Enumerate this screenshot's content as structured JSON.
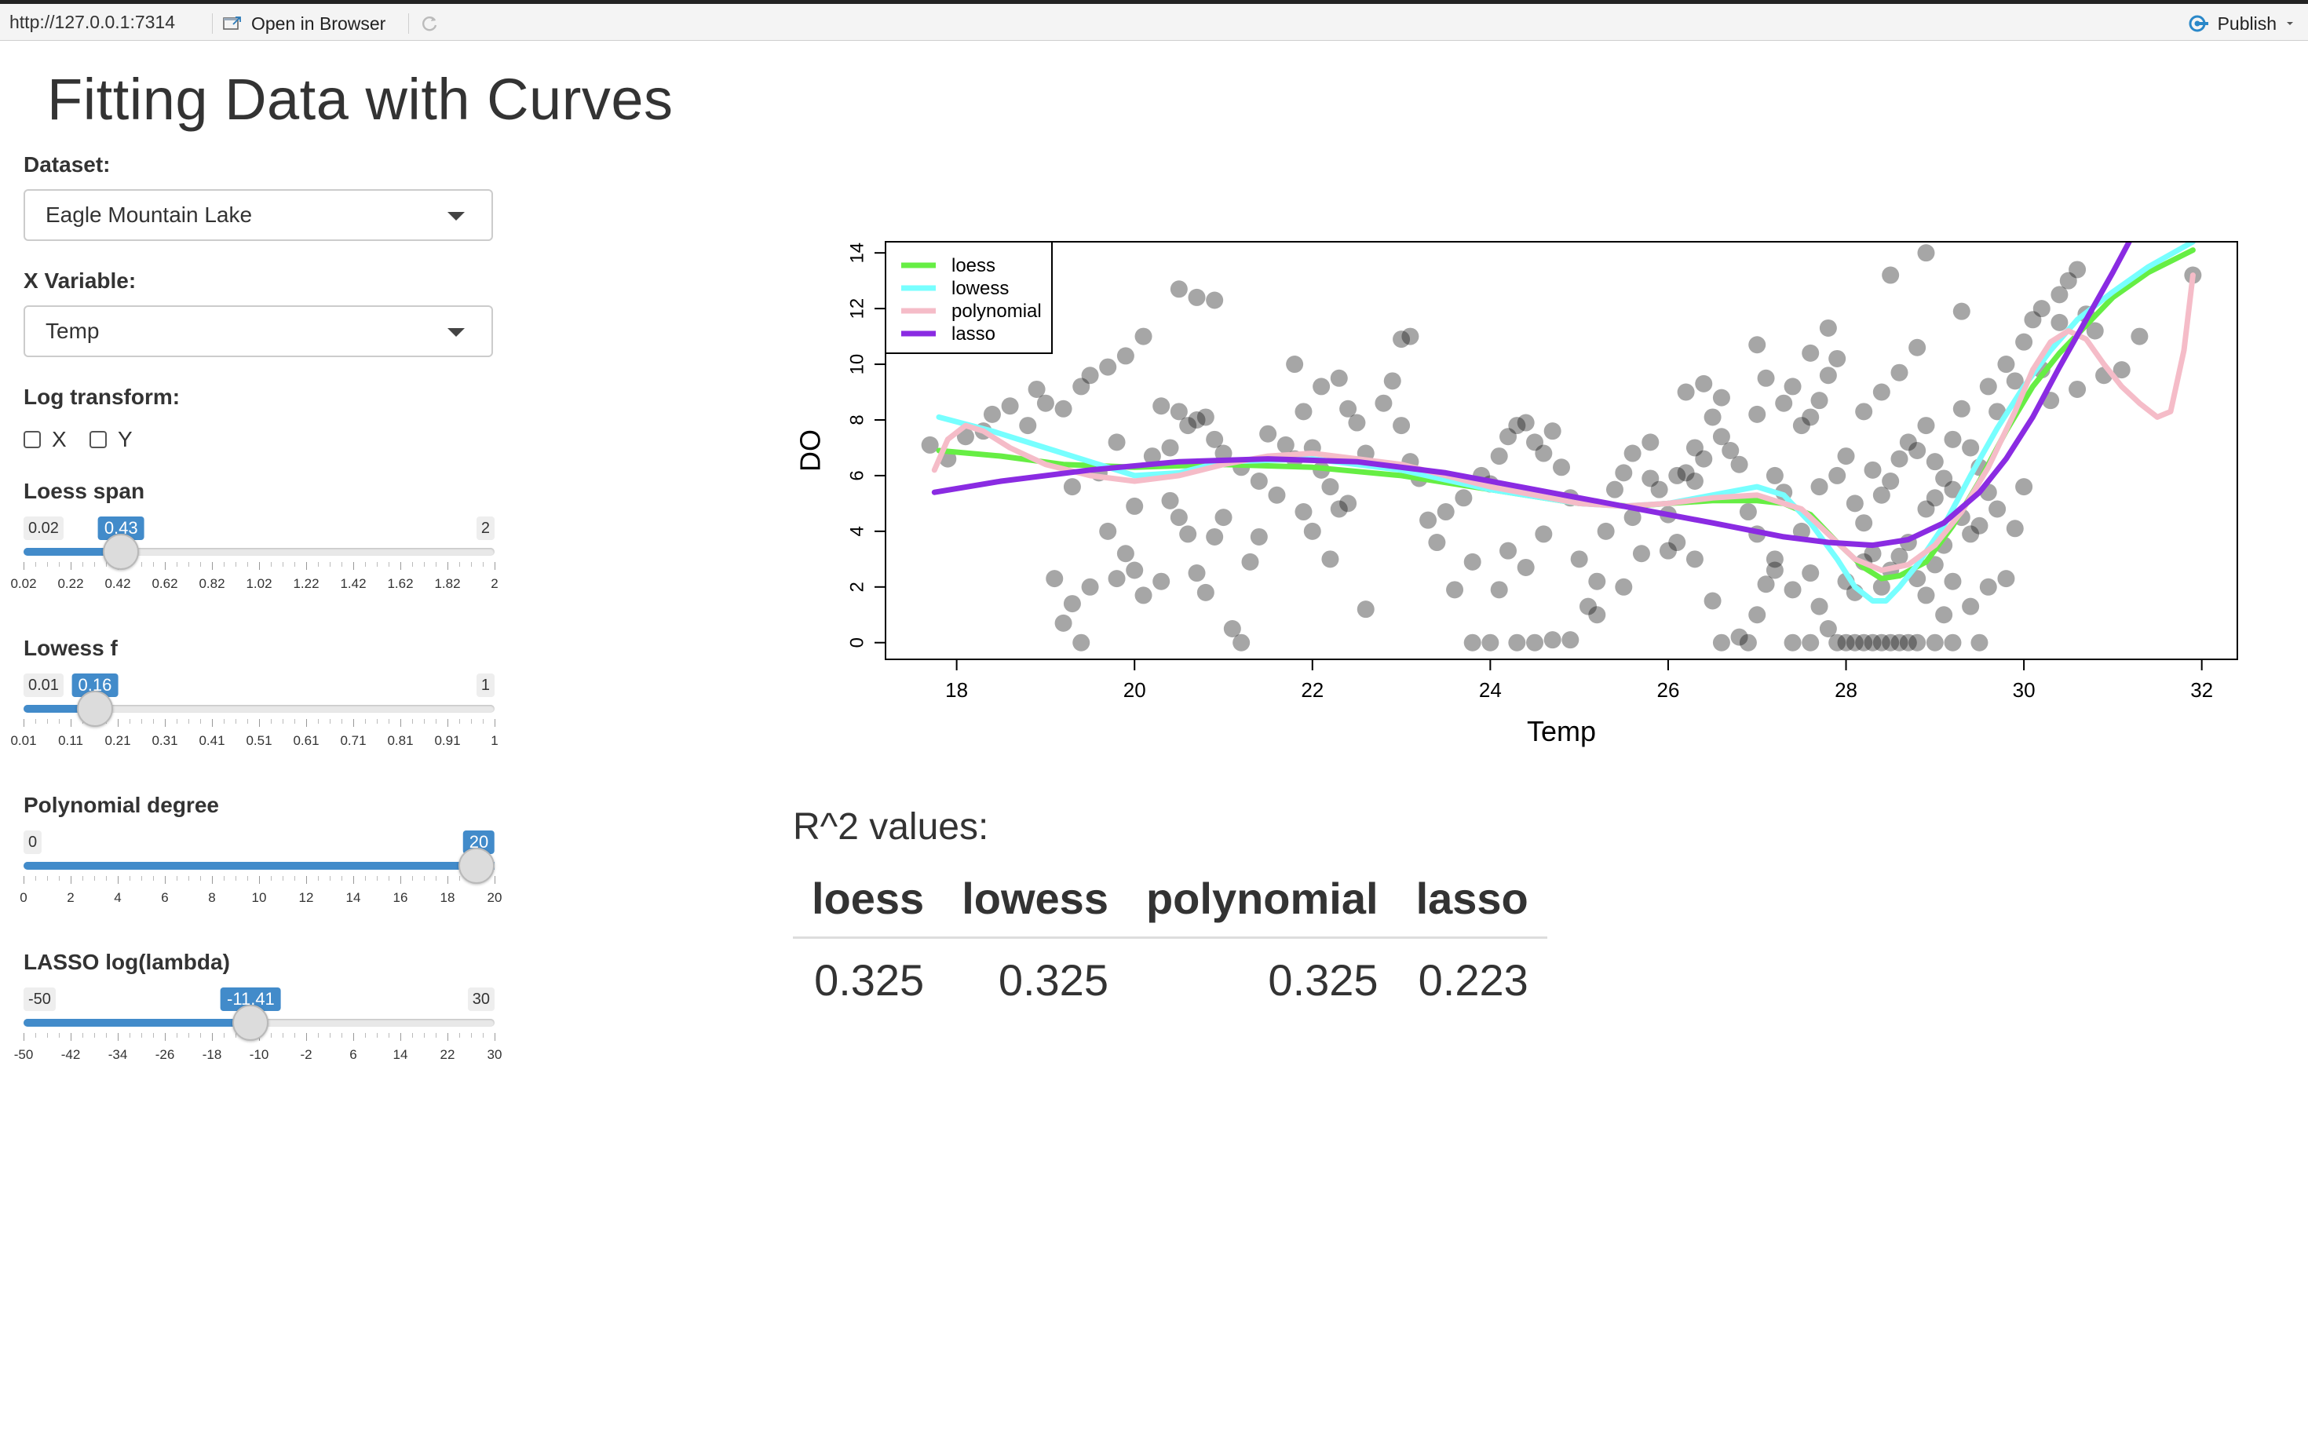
{
  "window": {
    "url": "http://127.0.0.1:7314",
    "open_in_browser": "Open in Browser",
    "publish": "Publish"
  },
  "page": {
    "title": "Fitting Data with Curves"
  },
  "controls": {
    "dataset": {
      "label": "Dataset:",
      "value": "Eagle Mountain Lake"
    },
    "xvar": {
      "label": "X Variable:",
      "value": "Temp"
    },
    "logtransform": {
      "label": "Log transform:",
      "x": "X",
      "y": "Y",
      "x_checked": false,
      "y_checked": false
    },
    "sliders": [
      {
        "label": "Loess span",
        "min": 0.02,
        "max": 2,
        "value": 0.43,
        "min_label": "0.02",
        "max_label": "2",
        "value_label": "0.43",
        "ticks": [
          "0.02",
          "0.22",
          "0.42",
          "0.62",
          "0.82",
          "1.02",
          "1.22",
          "1.42",
          "1.62",
          "1.82",
          "2"
        ]
      },
      {
        "label": "Lowess f",
        "min": 0.01,
        "max": 1,
        "value": 0.16,
        "min_label": "0.01",
        "max_label": "1",
        "value_label": "0.16",
        "ticks": [
          "0.01",
          "0.11",
          "0.21",
          "0.31",
          "0.41",
          "0.51",
          "0.61",
          "0.71",
          "0.81",
          "0.91",
          "1"
        ]
      },
      {
        "label": "Polynomial degree",
        "min": 0,
        "max": 20,
        "value": 20,
        "min_label": "0",
        "max_label": "",
        "value_label": "20",
        "ticks": [
          "0",
          "2",
          "4",
          "6",
          "8",
          "10",
          "12",
          "14",
          "16",
          "18",
          "20"
        ]
      },
      {
        "label": "LASSO log(lambda)",
        "min": -50,
        "max": 30,
        "value": -11.41,
        "min_label": "-50",
        "max_label": "30",
        "value_label": "-11.41",
        "ticks": [
          "-50",
          "-42",
          "-34",
          "-26",
          "-18",
          "-10",
          "-2",
          "6",
          "14",
          "22",
          "30"
        ]
      }
    ]
  },
  "results": {
    "title": "R^2 values:",
    "columns": [
      "loess",
      "lowess",
      "polynomial",
      "lasso"
    ],
    "values": [
      "0.325",
      "0.325",
      "0.325",
      "0.223"
    ]
  },
  "chart_data": {
    "type": "scatter",
    "xlabel": "Temp",
    "ylabel": "DO",
    "xlim": [
      17.2,
      32.4
    ],
    "ylim": [
      -0.6,
      14.4
    ],
    "xticks": [
      18,
      20,
      22,
      24,
      26,
      28,
      30,
      32
    ],
    "yticks": [
      0,
      2,
      4,
      6,
      8,
      10,
      12,
      14
    ],
    "legend_position": "top-left",
    "point_color": "rgba(0,0,0,0.35)",
    "points": [
      [
        17.7,
        7.1
      ],
      [
        17.9,
        6.6
      ],
      [
        18.1,
        7.4
      ],
      [
        18.3,
        7.6
      ],
      [
        18.4,
        8.2
      ],
      [
        18.6,
        8.5
      ],
      [
        18.8,
        7.8
      ],
      [
        19.0,
        8.6
      ],
      [
        19.2,
        8.4
      ],
      [
        19.4,
        9.2
      ],
      [
        19.5,
        9.6
      ],
      [
        19.7,
        9.9
      ],
      [
        19.9,
        10.3
      ],
      [
        18.9,
        9.1
      ],
      [
        19.3,
        5.6
      ],
      [
        19.6,
        6.1
      ],
      [
        19.8,
        7.2
      ],
      [
        19.1,
        2.3
      ],
      [
        19.3,
        1.4
      ],
      [
        19.5,
        2.0
      ],
      [
        19.2,
        0.7
      ],
      [
        19.4,
        0.0
      ],
      [
        19.8,
        2.3
      ],
      [
        20.0,
        2.6
      ],
      [
        20.1,
        1.7
      ],
      [
        20.3,
        2.2
      ],
      [
        20.5,
        4.5
      ],
      [
        20.6,
        3.9
      ],
      [
        20.4,
        5.1
      ],
      [
        20.2,
        6.7
      ],
      [
        20.4,
        7.0
      ],
      [
        20.6,
        7.8
      ],
      [
        20.8,
        8.1
      ],
      [
        20.5,
        8.3
      ],
      [
        20.3,
        8.5
      ],
      [
        20.7,
        8.0
      ],
      [
        20.9,
        7.3
      ],
      [
        21.0,
        6.8
      ],
      [
        21.2,
        6.3
      ],
      [
        21.4,
        5.8
      ],
      [
        21.0,
        4.5
      ],
      [
        20.9,
        3.8
      ],
      [
        20.7,
        2.5
      ],
      [
        20.8,
        1.8
      ],
      [
        21.1,
        0.5
      ],
      [
        21.2,
        0.0
      ],
      [
        20.5,
        12.7
      ],
      [
        20.7,
        12.4
      ],
      [
        20.9,
        12.3
      ],
      [
        20.1,
        11.0
      ],
      [
        21.3,
        2.9
      ],
      [
        21.4,
        3.8
      ],
      [
        21.5,
        7.5
      ],
      [
        21.7,
        7.1
      ],
      [
        21.8,
        6.6
      ],
      [
        21.9,
        8.3
      ],
      [
        22.0,
        7.0
      ],
      [
        22.1,
        6.2
      ],
      [
        22.2,
        5.6
      ],
      [
        22.3,
        4.8
      ],
      [
        21.8,
        10.0
      ],
      [
        22.1,
        9.2
      ],
      [
        22.3,
        9.5
      ],
      [
        22.4,
        8.4
      ],
      [
        22.5,
        7.9
      ],
      [
        22.6,
        6.8
      ],
      [
        22.2,
        3.0
      ],
      [
        22.4,
        5.0
      ],
      [
        22.6,
        1.2
      ],
      [
        22.8,
        8.6
      ],
      [
        23.0,
        7.8
      ],
      [
        23.1,
        6.5
      ],
      [
        23.2,
        5.9
      ],
      [
        23.3,
        4.4
      ],
      [
        23.0,
        10.9
      ],
      [
        23.1,
        11.0
      ],
      [
        22.9,
        9.4
      ],
      [
        23.4,
        3.6
      ],
      [
        23.5,
        4.7
      ],
      [
        23.7,
        5.2
      ],
      [
        23.9,
        6.0
      ],
      [
        24.0,
        5.7
      ],
      [
        24.1,
        6.7
      ],
      [
        24.2,
        7.4
      ],
      [
        24.3,
        7.8
      ],
      [
        24.4,
        7.9
      ],
      [
        24.5,
        7.2
      ],
      [
        24.6,
        6.8
      ],
      [
        24.7,
        7.6
      ],
      [
        24.8,
        6.3
      ],
      [
        24.9,
        5.2
      ],
      [
        24.6,
        3.9
      ],
      [
        24.4,
        2.7
      ],
      [
        24.2,
        3.3
      ],
      [
        24.1,
        1.9
      ],
      [
        23.8,
        0.0
      ],
      [
        24.0,
        0.0
      ],
      [
        24.3,
        0.0
      ],
      [
        24.5,
        0.0
      ],
      [
        24.7,
        0.1
      ],
      [
        24.9,
        0.1
      ],
      [
        25.1,
        1.3
      ],
      [
        25.2,
        2.2
      ],
      [
        25.0,
        3.0
      ],
      [
        25.3,
        4.0
      ],
      [
        25.4,
        5.5
      ],
      [
        25.5,
        6.1
      ],
      [
        25.6,
        6.8
      ],
      [
        25.8,
        7.2
      ],
      [
        25.9,
        5.5
      ],
      [
        26.0,
        4.6
      ],
      [
        26.1,
        3.6
      ],
      [
        26.1,
        6.0
      ],
      [
        26.2,
        6.1
      ],
      [
        26.3,
        5.8
      ],
      [
        26.3,
        7.0
      ],
      [
        26.4,
        6.6
      ],
      [
        26.5,
        8.1
      ],
      [
        26.6,
        7.4
      ],
      [
        26.7,
        6.9
      ],
      [
        26.8,
        6.4
      ],
      [
        26.4,
        9.3
      ],
      [
        26.6,
        8.8
      ],
      [
        26.2,
        9.0
      ],
      [
        26.0,
        3.3
      ],
      [
        26.3,
        3.0
      ],
      [
        26.5,
        1.5
      ],
      [
        26.6,
        0.0
      ],
      [
        26.8,
        0.2
      ],
      [
        26.9,
        0.0
      ],
      [
        27.0,
        1.0
      ],
      [
        27.1,
        2.1
      ],
      [
        27.2,
        3.0
      ],
      [
        27.2,
        6.0
      ],
      [
        27.3,
        5.4
      ],
      [
        27.0,
        8.2
      ],
      [
        27.1,
        9.5
      ],
      [
        27.3,
        8.6
      ],
      [
        27.4,
        9.2
      ],
      [
        27.5,
        7.8
      ],
      [
        27.6,
        8.1
      ],
      [
        27.7,
        8.7
      ],
      [
        27.8,
        9.6
      ],
      [
        27.9,
        10.2
      ],
      [
        27.0,
        10.7
      ],
      [
        27.6,
        10.4
      ],
      [
        27.8,
        11.3
      ],
      [
        27.5,
        4.0
      ],
      [
        27.6,
        2.5
      ],
      [
        27.7,
        1.3
      ],
      [
        27.8,
        0.5
      ],
      [
        27.9,
        0.0
      ],
      [
        28.0,
        0.0
      ],
      [
        28.1,
        0.0
      ],
      [
        28.2,
        0.0
      ],
      [
        28.3,
        0.0
      ],
      [
        28.4,
        0.0
      ],
      [
        28.5,
        0.0
      ],
      [
        28.6,
        0.0
      ],
      [
        28.7,
        0.0
      ],
      [
        28.8,
        0.0
      ],
      [
        27.4,
        0.0
      ],
      [
        27.6,
        0.0
      ],
      [
        28.0,
        2.2
      ],
      [
        28.1,
        1.8
      ],
      [
        28.2,
        2.9
      ],
      [
        28.3,
        3.2
      ],
      [
        28.4,
        2.0
      ],
      [
        28.5,
        2.6
      ],
      [
        28.6,
        3.1
      ],
      [
        28.7,
        3.6
      ],
      [
        28.8,
        2.3
      ],
      [
        28.9,
        1.7
      ],
      [
        29.0,
        2.8
      ],
      [
        29.1,
        3.5
      ],
      [
        29.2,
        2.2
      ],
      [
        29.3,
        4.5
      ],
      [
        28.1,
        5.0
      ],
      [
        28.2,
        4.3
      ],
      [
        28.4,
        5.3
      ],
      [
        28.5,
        5.8
      ],
      [
        28.6,
        6.6
      ],
      [
        28.7,
        7.2
      ],
      [
        28.8,
        6.9
      ],
      [
        28.9,
        7.8
      ],
      [
        29.0,
        6.5
      ],
      [
        29.1,
        5.9
      ],
      [
        29.2,
        7.3
      ],
      [
        29.3,
        8.4
      ],
      [
        29.4,
        7.0
      ],
      [
        29.5,
        6.3
      ],
      [
        29.6,
        5.4
      ],
      [
        29.7,
        4.8
      ],
      [
        28.2,
        8.3
      ],
      [
        28.4,
        9.0
      ],
      [
        28.6,
        9.7
      ],
      [
        28.8,
        10.6
      ],
      [
        28.5,
        13.2
      ],
      [
        28.9,
        14.0
      ],
      [
        29.3,
        11.9
      ],
      [
        29.6,
        9.2
      ],
      [
        29.7,
        8.3
      ],
      [
        29.8,
        10.0
      ],
      [
        29.9,
        9.4
      ],
      [
        30.0,
        10.8
      ],
      [
        30.1,
        11.6
      ],
      [
        30.2,
        9.8
      ],
      [
        30.3,
        8.7
      ],
      [
        30.4,
        12.5
      ],
      [
        30.5,
        13.0
      ],
      [
        30.6,
        13.4
      ],
      [
        30.7,
        11.8
      ],
      [
        30.8,
        11.2
      ],
      [
        30.0,
        5.6
      ],
      [
        29.9,
        4.1
      ],
      [
        29.8,
        2.3
      ],
      [
        29.5,
        0.0
      ],
      [
        29.2,
        0.0
      ],
      [
        29.0,
        0.0
      ],
      [
        29.1,
        1.0
      ],
      [
        29.4,
        1.3
      ],
      [
        29.6,
        2.0
      ],
      [
        30.2,
        12.0
      ],
      [
        30.4,
        11.5
      ],
      [
        30.6,
        9.1
      ],
      [
        30.9,
        9.6
      ],
      [
        31.1,
        9.8
      ],
      [
        31.3,
        11.0
      ],
      [
        31.9,
        13.2
      ],
      [
        29.0,
        5.2
      ],
      [
        28.9,
        4.8
      ],
      [
        29.2,
        5.5
      ],
      [
        29.4,
        3.9
      ],
      [
        29.5,
        4.2
      ],
      [
        28.3,
        6.2
      ],
      [
        28.0,
        6.7
      ],
      [
        27.9,
        6.0
      ],
      [
        27.7,
        5.6
      ],
      [
        25.7,
        3.2
      ],
      [
        25.5,
        2.0
      ],
      [
        25.2,
        1.0
      ],
      [
        25.6,
        4.5
      ],
      [
        25.8,
        5.9
      ],
      [
        26.9,
        4.7
      ],
      [
        27.0,
        3.9
      ],
      [
        27.2,
        2.6
      ],
      [
        27.4,
        1.9
      ],
      [
        23.6,
        1.9
      ],
      [
        23.8,
        2.9
      ],
      [
        21.6,
        5.3
      ],
      [
        21.9,
        4.7
      ],
      [
        22.0,
        4.0
      ],
      [
        20.0,
        4.9
      ],
      [
        19.9,
        3.2
      ],
      [
        19.7,
        4.0
      ]
    ],
    "series": [
      {
        "name": "loess",
        "color": "#66ee44",
        "x": [
          17.8,
          18.5,
          19.2,
          20.0,
          21.0,
          22.0,
          23.0,
          24.0,
          25.0,
          25.6,
          26.0,
          26.5,
          27.0,
          27.3,
          27.6,
          27.9,
          28.2,
          28.4,
          28.6,
          28.9,
          29.2,
          29.5,
          29.8,
          30.1,
          30.4,
          30.7,
          31.0,
          31.4,
          31.9
        ],
        "y": [
          6.9,
          6.7,
          6.4,
          6.3,
          6.4,
          6.3,
          6.0,
          5.5,
          5.0,
          4.9,
          5.0,
          5.1,
          5.1,
          5.0,
          4.6,
          3.6,
          2.7,
          2.3,
          2.4,
          2.9,
          4.2,
          5.8,
          7.6,
          9.2,
          10.4,
          11.4,
          12.4,
          13.3,
          14.1
        ]
      },
      {
        "name": "lowess",
        "color": "#77ffff",
        "x": [
          17.8,
          18.4,
          19.0,
          19.6,
          20.0,
          20.5,
          21.0,
          22.0,
          23.0,
          24.0,
          25.0,
          25.5,
          26.0,
          26.5,
          27.0,
          27.3,
          27.6,
          27.9,
          28.1,
          28.3,
          28.45,
          28.6,
          28.8,
          29.1,
          29.4,
          29.7,
          30.0,
          30.3,
          30.6,
          31.0,
          31.4,
          31.9
        ],
        "y": [
          8.1,
          7.6,
          7.0,
          6.4,
          6.0,
          6.1,
          6.5,
          6.6,
          6.2,
          5.5,
          5.0,
          4.9,
          5.0,
          5.3,
          5.6,
          5.3,
          4.3,
          3.0,
          2.0,
          1.5,
          1.5,
          2.0,
          2.8,
          4.2,
          6.0,
          7.7,
          9.2,
          10.5,
          11.6,
          12.6,
          13.5,
          14.4
        ]
      },
      {
        "name": "polynomial",
        "color": "#f5bcc8",
        "x": [
          17.75,
          17.9,
          18.1,
          18.3,
          18.6,
          19.0,
          19.5,
          20.0,
          20.5,
          21.0,
          21.5,
          22.0,
          23.0,
          24.0,
          25.0,
          25.5,
          26.0,
          26.5,
          27.0,
          27.5,
          27.8,
          28.1,
          28.4,
          28.7,
          29.0,
          29.3,
          29.6,
          29.9,
          30.1,
          30.3,
          30.5,
          30.7,
          30.9,
          31.1,
          31.3,
          31.5,
          31.65,
          31.8,
          31.9
        ],
        "y": [
          6.2,
          7.3,
          7.8,
          7.6,
          7.0,
          6.4,
          6.0,
          5.8,
          6.0,
          6.4,
          6.7,
          6.8,
          6.4,
          5.6,
          5.0,
          4.9,
          5.0,
          5.2,
          5.3,
          4.8,
          3.9,
          3.0,
          2.6,
          2.8,
          3.5,
          4.7,
          6.3,
          8.3,
          9.8,
          10.8,
          11.2,
          10.9,
          10.0,
          9.2,
          8.6,
          8.1,
          8.3,
          10.5,
          13.2
        ]
      },
      {
        "name": "lasso",
        "color": "#8a2be2",
        "x": [
          17.75,
          18.5,
          19.5,
          20.5,
          21.5,
          22.5,
          23.5,
          24.5,
          25.5,
          26.5,
          27.3,
          27.8,
          28.3,
          28.7,
          29.1,
          29.5,
          29.8,
          30.1,
          30.4,
          30.7,
          31.0,
          31.2
        ],
        "y": [
          5.4,
          5.8,
          6.2,
          6.5,
          6.6,
          6.5,
          6.1,
          5.5,
          4.9,
          4.3,
          3.8,
          3.6,
          3.5,
          3.7,
          4.3,
          5.4,
          6.6,
          8.1,
          9.9,
          11.6,
          13.3,
          14.5
        ]
      }
    ]
  }
}
